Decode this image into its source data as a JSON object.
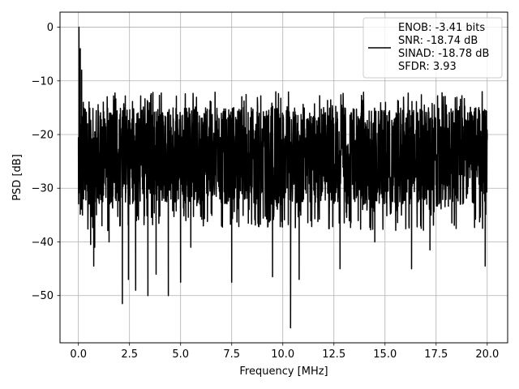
{
  "chart_data": {
    "type": "line",
    "title": "",
    "xlabel": "Frequency [MHz]",
    "ylabel": "PSD [dB]",
    "xlim": [
      -0.9,
      21.0
    ],
    "ylim": [
      -58.8,
      2.8
    ],
    "x_ticks": [
      0.0,
      2.5,
      5.0,
      7.5,
      10.0,
      12.5,
      15.0,
      17.5,
      20.0
    ],
    "x_tick_labels": [
      "0.0",
      "2.5",
      "5.0",
      "7.5",
      "10.0",
      "12.5",
      "15.0",
      "17.5",
      "20.0"
    ],
    "y_ticks": [
      0,
      -10,
      -20,
      -30,
      -40,
      -50
    ],
    "y_tick_labels": [
      "0",
      "−10",
      "−20",
      "−30",
      "−40",
      "−50"
    ],
    "grid": true,
    "legend_position": "top-right",
    "series": [
      {
        "color": "#000000",
        "x_range": [
          0.0,
          20.0
        ],
        "points": [
          [
            0.0,
            -23
          ],
          [
            0.03,
            0
          ],
          [
            0.06,
            -15
          ],
          [
            0.09,
            -4
          ],
          [
            0.12,
            -20
          ],
          [
            0.16,
            -8
          ],
          [
            0.2,
            -35
          ],
          [
            0.24,
            -14
          ],
          [
            0.3,
            -28
          ],
          [
            0.45,
            -18
          ],
          [
            0.6,
            -40.5
          ],
          [
            0.75,
            -44.5
          ],
          [
            0.8,
            -41
          ],
          [
            1.15,
            -37
          ],
          [
            1.5,
            -40
          ],
          [
            2.15,
            -51.5
          ],
          [
            2.45,
            -47
          ],
          [
            2.8,
            -49
          ],
          [
            3.4,
            -50
          ],
          [
            3.8,
            -46
          ],
          [
            4.4,
            -50
          ],
          [
            5.0,
            -47.5
          ],
          [
            5.5,
            -41
          ],
          [
            7.5,
            -47.5
          ],
          [
            9.5,
            -46.5
          ],
          [
            10.38,
            -56
          ],
          [
            10.8,
            -47
          ],
          [
            12.8,
            -45
          ],
          [
            14.5,
            -40
          ],
          [
            16.3,
            -45
          ],
          [
            17.2,
            -41.5
          ],
          [
            19.9,
            -44.5
          ],
          [
            20.0,
            -21
          ]
        ]
      }
    ],
    "legend": {
      "entries": [
        "ENOB: -3.41 bits",
        "SNR: -18.74 dB",
        "SINAD: -18.78 dB",
        "SFDR: 3.93"
      ]
    }
  }
}
